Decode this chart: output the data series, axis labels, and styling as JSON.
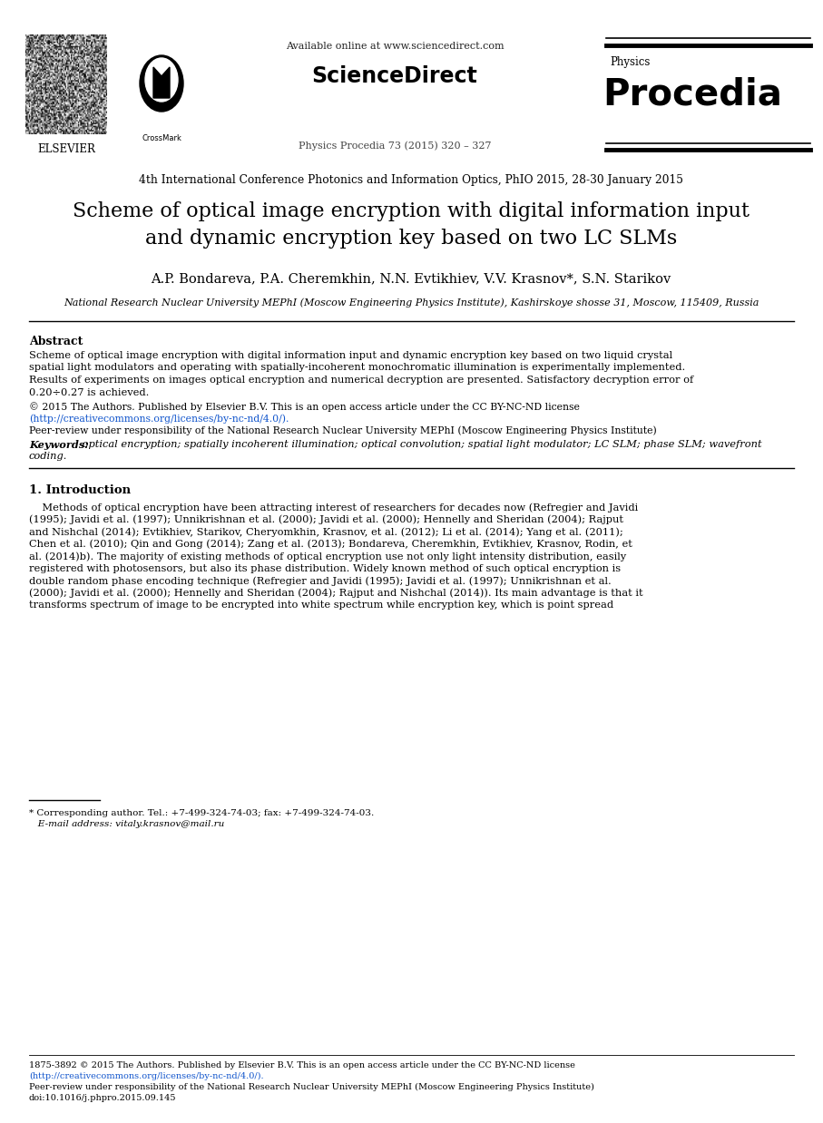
{
  "bg_color": "#ffffff",
  "available_text": "Available online at www.sciencedirect.com",
  "sciencedirect_text": "ScienceDirect",
  "journal_text": "Physics Procedia 73 (2015) 320 – 327",
  "physics_text": "Physics",
  "procedia_text": "Procedia",
  "elsevier_text": "ELSEVIER",
  "conference_line": "4th International Conference Photonics and Information Optics, PhIO 2015, 28-30 January 2015",
  "title_line1": "Scheme of optical image encryption with digital information input",
  "title_line2": "and dynamic encryption key based on two LC SLMs",
  "authors": "A.P. Bondareva, P.A. Cheremkhin, N.N. Evtikhiev, V.V. Krasnov*, S.N. Starikov",
  "affiliation": "National Research Nuclear University MEPhI (Moscow Engineering Physics Institute), Kashirskoye shosse 31, Moscow, 115409, Russia",
  "abstract_title": "Abstract",
  "abstract_lines": [
    "Scheme of optical image encryption with digital information input and dynamic encryption key based on two liquid crystal",
    "spatial light modulators and operating with spatially-incoherent monochromatic illumination is experimentally implemented.",
    "Results of experiments on images optical encryption and numerical decryption are presented. Satisfactory decryption error of",
    "0.20÷0.27 is achieved."
  ],
  "license_text1": "© 2015 The Authors. Published by Elsevier B.V. This is an open access article under the CC BY-NC-ND license",
  "license_url": "(http://creativecommons.org/licenses/by-nc-nd/4.0/).",
  "peer_review_text": "Peer-review under responsibility of the National Research Nuclear University MEPhI (Moscow Engineering Physics Institute)",
  "keywords_label": "Keywords:",
  "keywords_line1": " optical encryption; spatially incoherent illumination; optical convolution; spatial light modulator; LC SLM; phase SLM; wavefront",
  "keywords_line2": "coding.",
  "intro_title": "1. Introduction",
  "intro_lines": [
    "    Methods of optical encryption have been attracting interest of researchers for decades now (Refregier and Javidi",
    "(1995); Javidi et al. (1997); Unnikrishnan et al. (2000); Javidi et al. (2000); Hennelly and Sheridan (2004); Rajput",
    "and Nishchal (2014); Evtikhiev, Starikov, Cheryomkhin, Krasnov, et al. (2012); Li et al. (2014); Yang et al. (2011);",
    "Chen et al. (2010); Qin and Gong (2014); Zang et al. (2013); Bondareva, Cheremkhin, Evtikhiev, Krasnov, Rodin, et",
    "al. (2014)b). The majority of existing methods of optical encryption use not only light intensity distribution, easily",
    "registered with photosensors, but also its phase distribution. Widely known method of such optical encryption is",
    "double random phase encoding technique (Refregier and Javidi (1995); Javidi et al. (1997); Unnikrishnan et al.",
    "(2000); Javidi et al. (2000); Hennelly and Sheridan (2004); Rajput and Nishchal (2014)). Its main advantage is that it",
    "transforms spectrum of image to be encrypted into white spectrum while encryption key, which is point spread"
  ],
  "footnote_line": "* Corresponding author. Tel.: +7-499-324-74-03; fax: +7-499-324-74-03.",
  "footnote_email": "   E-mail address: vitaly.krasnov@mail.ru",
  "footer_issn": "1875-3892 © 2015 The Authors. Published by Elsevier B.V. This is an open access article under the CC BY-NC-ND license",
  "footer_url": "(http://creativecommons.org/licenses/by-nc-nd/4.0/).",
  "footer_peer": "Peer-review under responsibility of the National Research Nuclear University MEPhI (Moscow Engineering Physics Institute)",
  "footer_doi": "doi:10.1016/j.phpro.2015.09.145"
}
